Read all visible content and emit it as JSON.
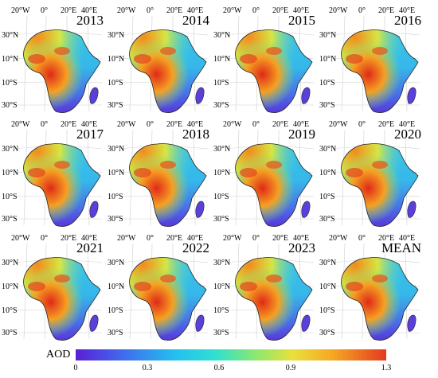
{
  "map": {
    "lon_labels": [
      "20°W",
      "0°",
      "20°E",
      "40°E"
    ],
    "lat_labels": [
      "30°N",
      "10°N",
      "10°S",
      "30°S"
    ],
    "panels": [
      "2013",
      "2014",
      "2015",
      "2016",
      "2017",
      "2018",
      "2019",
      "2020",
      "2021",
      "2022",
      "2023",
      "MEAN"
    ]
  },
  "legend": {
    "label": "AOD",
    "ticks": [
      "0",
      "0.3",
      "0.6",
      "0.9",
      "1.3"
    ],
    "colors": [
      "#5a1fd6",
      "#3f6fee",
      "#22c0f0",
      "#2fe0d0",
      "#8be870",
      "#e9e03a",
      "#f5a623",
      "#e53a1e"
    ]
  }
}
